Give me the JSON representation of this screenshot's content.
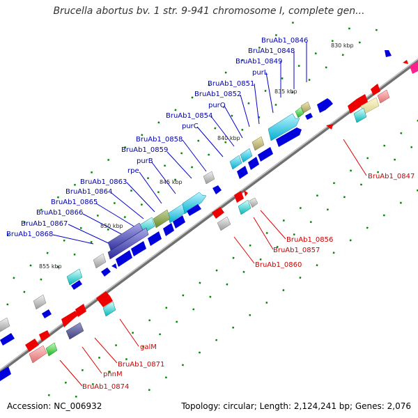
{
  "title": "Brucella abortus bv. 1 str. 9-941 chromosome I, complete gen...",
  "footer": {
    "accession": "Accession: NC_006932",
    "topology": "Topology: circular; Length: 2,124,241 bp; Genes: 2,076"
  },
  "kbp_labels": [
    "830 kbp",
    "835 kbp",
    "840 kbp",
    "845 kbp",
    "850 kbp",
    "855 kbp"
  ],
  "upper_labels": [
    "BruAb1_0846",
    "BruAb1_0848",
    "BruAb1_0849",
    "purL",
    "BruAb1_0851",
    "BruAb1_0852",
    "purQ",
    "BruAb1_0854",
    "purC",
    "BruAb1_0858",
    "BruAb1_0859",
    "purB",
    "rpe",
    "BruAb1_0863",
    "BruAb1_0864",
    "BruAb1_0865",
    "BruAb1_0866",
    "BruAb1_0867",
    "BruAb1_0868"
  ],
  "lower_labels": [
    "BruAb1_0847",
    "BruAb1_0856",
    "BruAb1_0857",
    "BruAb1_0860",
    "galM",
    "BruAb1_0871",
    "phnM",
    "BruAb1_0874"
  ],
  "colors": {
    "forward_gene": "#0000dd",
    "reverse_gene": "#ee0000",
    "backbone": "#888888",
    "tick": "#008800"
  }
}
